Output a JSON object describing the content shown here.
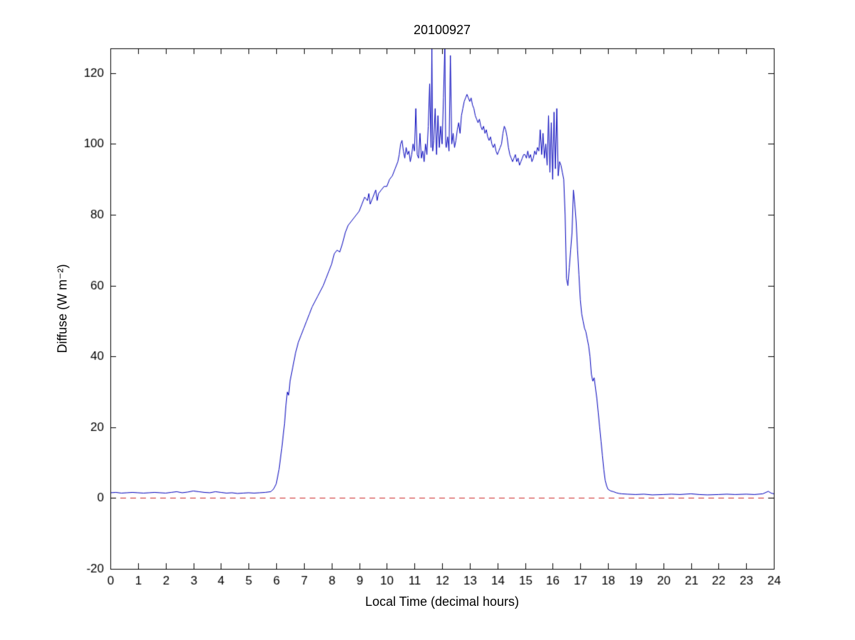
{
  "chart_data": {
    "type": "line",
    "title": "20100927",
    "xlabel": "Local Time (decimal hours)",
    "ylabel": "Diffuse (W m⁻²)",
    "xlim": [
      0,
      24
    ],
    "ylim": [
      -20,
      127
    ],
    "xticks": [
      0,
      1,
      2,
      3,
      4,
      5,
      6,
      7,
      8,
      9,
      10,
      11,
      12,
      13,
      14,
      15,
      16,
      17,
      18,
      19,
      20,
      21,
      22,
      23,
      24
    ],
    "yticks": [
      -20,
      0,
      20,
      40,
      60,
      80,
      100,
      120
    ],
    "grid": false,
    "legend_position": "none",
    "axis_color": "#000000",
    "background_color": "#ffffff",
    "series": [
      {
        "name": "zero-reference-line",
        "color": "#cc2222",
        "style": "dashed",
        "points": [
          [
            0,
            0
          ],
          [
            24,
            0
          ]
        ]
      },
      {
        "name": "diffuse-irradiance",
        "color": "#0000bb",
        "style": "solid",
        "points": [
          [
            0,
            1.5
          ],
          [
            0.2,
            1.6
          ],
          [
            0.4,
            1.4
          ],
          [
            0.6,
            1.5
          ],
          [
            0.8,
            1.6
          ],
          [
            1,
            1.5
          ],
          [
            1.2,
            1.4
          ],
          [
            1.4,
            1.5
          ],
          [
            1.6,
            1.6
          ],
          [
            1.8,
            1.5
          ],
          [
            2,
            1.4
          ],
          [
            2.2,
            1.6
          ],
          [
            2.4,
            1.8
          ],
          [
            2.6,
            1.5
          ],
          [
            2.8,
            1.7
          ],
          [
            3,
            2
          ],
          [
            3.2,
            1.8
          ],
          [
            3.4,
            1.6
          ],
          [
            3.6,
            1.5
          ],
          [
            3.8,
            1.8
          ],
          [
            4,
            1.6
          ],
          [
            4.2,
            1.4
          ],
          [
            4.4,
            1.5
          ],
          [
            4.6,
            1.3
          ],
          [
            4.8,
            1.4
          ],
          [
            5,
            1.5
          ],
          [
            5.2,
            1.4
          ],
          [
            5.4,
            1.5
          ],
          [
            5.6,
            1.6
          ],
          [
            5.8,
            1.8
          ],
          [
            5.9,
            2.5
          ],
          [
            6,
            4
          ],
          [
            6.1,
            8
          ],
          [
            6.2,
            14
          ],
          [
            6.3,
            21
          ],
          [
            6.35,
            26
          ],
          [
            6.4,
            30
          ],
          [
            6.45,
            29
          ],
          [
            6.5,
            33
          ],
          [
            6.6,
            37
          ],
          [
            6.7,
            41
          ],
          [
            6.8,
            44
          ],
          [
            6.9,
            46
          ],
          [
            7,
            48
          ],
          [
            7.1,
            50
          ],
          [
            7.2,
            52
          ],
          [
            7.3,
            54
          ],
          [
            7.4,
            55.5
          ],
          [
            7.5,
            57
          ],
          [
            7.6,
            58.5
          ],
          [
            7.7,
            60
          ],
          [
            7.8,
            62
          ],
          [
            7.9,
            64
          ],
          [
            8,
            66
          ],
          [
            8.1,
            69
          ],
          [
            8.2,
            70
          ],
          [
            8.3,
            69.5
          ],
          [
            8.4,
            72
          ],
          [
            8.5,
            75
          ],
          [
            8.6,
            77
          ],
          [
            8.7,
            78
          ],
          [
            8.8,
            79
          ],
          [
            8.9,
            80
          ],
          [
            9,
            81
          ],
          [
            9.1,
            83
          ],
          [
            9.2,
            85
          ],
          [
            9.3,
            84
          ],
          [
            9.35,
            86
          ],
          [
            9.4,
            83
          ],
          [
            9.5,
            85
          ],
          [
            9.6,
            87
          ],
          [
            9.65,
            84
          ],
          [
            9.7,
            86
          ],
          [
            9.8,
            87
          ],
          [
            9.9,
            88
          ],
          [
            10,
            88
          ],
          [
            10.1,
            90
          ],
          [
            10.2,
            91
          ],
          [
            10.3,
            93
          ],
          [
            10.4,
            95
          ],
          [
            10.45,
            97
          ],
          [
            10.5,
            100
          ],
          [
            10.55,
            101
          ],
          [
            10.6,
            98
          ],
          [
            10.65,
            96
          ],
          [
            10.7,
            99
          ],
          [
            10.75,
            97
          ],
          [
            10.8,
            98
          ],
          [
            10.85,
            95
          ],
          [
            10.9,
            97
          ],
          [
            10.95,
            100
          ],
          [
            11,
            98
          ],
          [
            11.05,
            110
          ],
          [
            11.1,
            97
          ],
          [
            11.15,
            96
          ],
          [
            11.2,
            103
          ],
          [
            11.25,
            96
          ],
          [
            11.3,
            98
          ],
          [
            11.35,
            95
          ],
          [
            11.4,
            100
          ],
          [
            11.45,
            97
          ],
          [
            11.5,
            105
          ],
          [
            11.55,
            117
          ],
          [
            11.6,
            99
          ],
          [
            11.63,
            127
          ],
          [
            11.66,
            98
          ],
          [
            11.7,
            101
          ],
          [
            11.75,
            110
          ],
          [
            11.8,
            97
          ],
          [
            11.85,
            108
          ],
          [
            11.9,
            99
          ],
          [
            11.95,
            105
          ],
          [
            12,
            100
          ],
          [
            12.05,
            113
          ],
          [
            12.1,
            128
          ],
          [
            12.13,
            100
          ],
          [
            12.15,
            99
          ],
          [
            12.2,
            102
          ],
          [
            12.25,
            98
          ],
          [
            12.3,
            125
          ],
          [
            12.35,
            100
          ],
          [
            12.4,
            103
          ],
          [
            12.45,
            99
          ],
          [
            12.5,
            101
          ],
          [
            12.55,
            104
          ],
          [
            12.6,
            106
          ],
          [
            12.65,
            103
          ],
          [
            12.7,
            108
          ],
          [
            12.75,
            110
          ],
          [
            12.8,
            112
          ],
          [
            12.85,
            113
          ],
          [
            12.9,
            114
          ],
          [
            12.95,
            113
          ],
          [
            13,
            112
          ],
          [
            13.05,
            113
          ],
          [
            13.1,
            111
          ],
          [
            13.15,
            110
          ],
          [
            13.2,
            108
          ],
          [
            13.25,
            107
          ],
          [
            13.3,
            106
          ],
          [
            13.35,
            107
          ],
          [
            13.4,
            105
          ],
          [
            13.45,
            104
          ],
          [
            13.5,
            105
          ],
          [
            13.55,
            103
          ],
          [
            13.6,
            104
          ],
          [
            13.65,
            102
          ],
          [
            13.7,
            101
          ],
          [
            13.75,
            102
          ],
          [
            13.8,
            100
          ],
          [
            13.85,
            99
          ],
          [
            13.9,
            100
          ],
          [
            13.95,
            98
          ],
          [
            14,
            97
          ],
          [
            14.05,
            98
          ],
          [
            14.1,
            99
          ],
          [
            14.15,
            100
          ],
          [
            14.2,
            103
          ],
          [
            14.25,
            105
          ],
          [
            14.3,
            104
          ],
          [
            14.35,
            102
          ],
          [
            14.4,
            99
          ],
          [
            14.45,
            97
          ],
          [
            14.5,
            96
          ],
          [
            14.55,
            95
          ],
          [
            14.6,
            96
          ],
          [
            14.65,
            97
          ],
          [
            14.7,
            95
          ],
          [
            14.75,
            96
          ],
          [
            14.8,
            94
          ],
          [
            14.85,
            95
          ],
          [
            14.9,
            96
          ],
          [
            14.95,
            97
          ],
          [
            15,
            97
          ],
          [
            15.05,
            96
          ],
          [
            15.1,
            98
          ],
          [
            15.15,
            96
          ],
          [
            15.2,
            97
          ],
          [
            15.25,
            95
          ],
          [
            15.3,
            96
          ],
          [
            15.35,
            98
          ],
          [
            15.4,
            97
          ],
          [
            15.45,
            99
          ],
          [
            15.5,
            98
          ],
          [
            15.55,
            104
          ],
          [
            15.6,
            97
          ],
          [
            15.65,
            103
          ],
          [
            15.7,
            96
          ],
          [
            15.75,
            100
          ],
          [
            15.8,
            94
          ],
          [
            15.85,
            108
          ],
          [
            15.9,
            92
          ],
          [
            15.95,
            106
          ],
          [
            16,
            90
          ],
          [
            16.05,
            109
          ],
          [
            16.1,
            93
          ],
          [
            16.15,
            110
          ],
          [
            16.2,
            91
          ],
          [
            16.25,
            95
          ],
          [
            16.3,
            94
          ],
          [
            16.35,
            92
          ],
          [
            16.4,
            90
          ],
          [
            16.45,
            80
          ],
          [
            16.5,
            62
          ],
          [
            16.55,
            60
          ],
          [
            16.6,
            65
          ],
          [
            16.65,
            70
          ],
          [
            16.7,
            75
          ],
          [
            16.75,
            87
          ],
          [
            16.8,
            83
          ],
          [
            16.85,
            78
          ],
          [
            16.9,
            70
          ],
          [
            16.95,
            63
          ],
          [
            17,
            56
          ],
          [
            17.05,
            52
          ],
          [
            17.1,
            50
          ],
          [
            17.15,
            48
          ],
          [
            17.2,
            47
          ],
          [
            17.25,
            45
          ],
          [
            17.3,
            43
          ],
          [
            17.35,
            40
          ],
          [
            17.4,
            35
          ],
          [
            17.45,
            33
          ],
          [
            17.5,
            34
          ],
          [
            17.55,
            31
          ],
          [
            17.6,
            28
          ],
          [
            17.65,
            24
          ],
          [
            17.7,
            20
          ],
          [
            17.75,
            16
          ],
          [
            17.8,
            12
          ],
          [
            17.85,
            8
          ],
          [
            17.9,
            5
          ],
          [
            17.95,
            3.5
          ],
          [
            18,
            2.5
          ],
          [
            18.1,
            2
          ],
          [
            18.2,
            1.8
          ],
          [
            18.3,
            1.5
          ],
          [
            18.4,
            1.3
          ],
          [
            18.5,
            1.2
          ],
          [
            18.7,
            1.1
          ],
          [
            19,
            1
          ],
          [
            19.3,
            1.1
          ],
          [
            19.6,
            0.9
          ],
          [
            20,
            1
          ],
          [
            20.3,
            1.1
          ],
          [
            20.6,
            1
          ],
          [
            21,
            1.2
          ],
          [
            21.3,
            1
          ],
          [
            21.6,
            0.9
          ],
          [
            22,
            1
          ],
          [
            22.3,
            1.1
          ],
          [
            22.6,
            1
          ],
          [
            23,
            1.1
          ],
          [
            23.3,
            1
          ],
          [
            23.6,
            1.2
          ],
          [
            23.8,
            1.9
          ],
          [
            23.9,
            1.4
          ],
          [
            24,
            1.2
          ]
        ]
      }
    ]
  }
}
